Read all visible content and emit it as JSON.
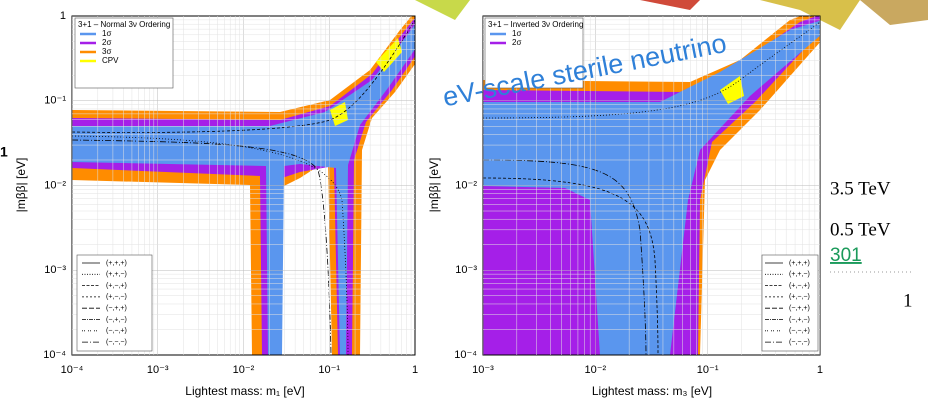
{
  "left_plot": {
    "legend_title": "3+1 – Normal 3ν Ordering",
    "legend": [
      "1σ",
      "2σ",
      "3σ",
      "CPV"
    ],
    "sign_legend": [
      "(+,+,+)",
      "(+,+,−)",
      "(+,−,+)",
      "(+,−,−)",
      "(−,+,+)",
      "(−,+,−)",
      "(−,−,+)",
      "(−,−,−)"
    ],
    "y_label": "|mββ|   [eV]",
    "x_label": "Lightest mass:   m₁    [eV]",
    "y_ticks": [
      "1",
      "10⁻¹",
      "10⁻²",
      "10⁻³",
      "10⁻⁴"
    ],
    "x_ticks": [
      "10⁻⁴",
      "10⁻³",
      "10⁻²",
      "10⁻¹",
      "1"
    ]
  },
  "right_plot": {
    "legend_title": "3+1 – Inverted 3ν Ordering",
    "legend": [
      "1σ",
      "2σ"
    ],
    "sign_legend": [
      "(+,+,+)",
      "(+,+,−)",
      "(+,−,+)",
      "(+,−,−)",
      "(−,+,+)",
      "(−,+,−)",
      "(−,−,+)",
      "(−,−,−)"
    ],
    "y_label": "|mββ|   [eV]",
    "x_label": "Lightest mass:   m₃    [eV]",
    "y_ticks": [
      "10⁻²",
      "10⁻³",
      "10⁻⁴"
    ],
    "x_ticks": [
      "10⁻³",
      "10⁻²",
      "10⁻¹",
      "1"
    ]
  },
  "overlay_caption": "eV-scale sterile neutrino",
  "fragments": {
    "left_number": "1",
    "energy_1": "3.5 TeV",
    "energy_2": "0.5 TeV",
    "link": "301",
    "axis_number": "1"
  }
}
